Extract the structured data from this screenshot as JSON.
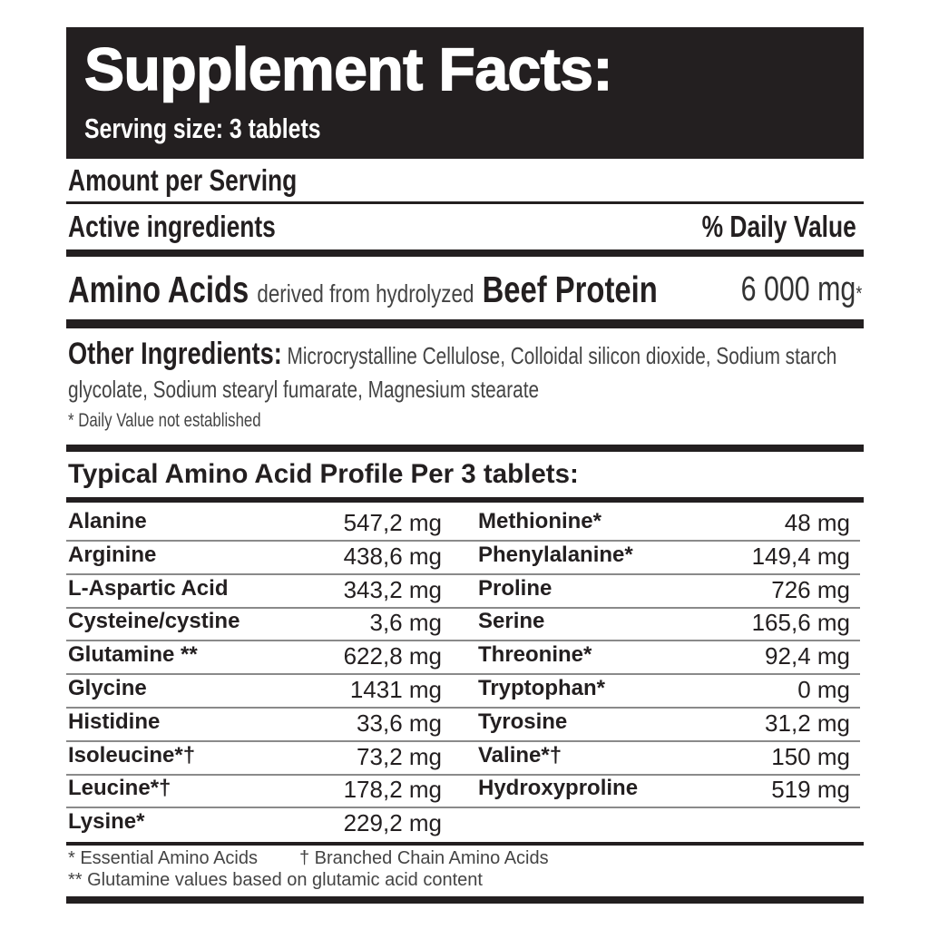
{
  "header": {
    "title": "Supplement Facts:",
    "serving_size": "Serving size: 3 tablets"
  },
  "amount_per_serving": "Amount per Serving",
  "active_ingredients_label": "Active ingredients",
  "daily_value_label": "% Daily Value",
  "active": {
    "name_bold_1": "Amino Acids",
    "name_regular": "derived from hydrolyzed",
    "name_bold_2": "Beef Protein",
    "amount": "6 000 mg",
    "amount_mark": "*"
  },
  "other_ingredients": {
    "label": "Other Ingredients:",
    "text": "Microcrystalline Cellulose, Colloidal silicon dioxide, Sodium starch glycolate, Sodium stearyl fumarate, Magnesium stearate"
  },
  "dv_note": "* Daily Value not established",
  "profile_title": "Typical Amino Acid Profile Per 3 tablets:",
  "amino_left": [
    {
      "name": "Alanine",
      "value": "547,2 mg"
    },
    {
      "name": "Arginine",
      "value": "438,6 mg"
    },
    {
      "name": "L-Aspartic Acid",
      "value": "343,2 mg"
    },
    {
      "name": "Cysteine/cystine",
      "value": "3,6 mg"
    },
    {
      "name": "Glutamine **",
      "value": "622,8 mg"
    },
    {
      "name": "Glycine",
      "value": "1431 mg"
    },
    {
      "name": "Histidine",
      "value": "33,6 mg"
    },
    {
      "name": "Isoleucine*†",
      "value": "73,2 mg"
    },
    {
      "name": "Leucine*†",
      "value": "178,2 mg"
    },
    {
      "name": "Lysine*",
      "value": "229,2 mg"
    }
  ],
  "amino_right": [
    {
      "name": "Methionine*",
      "value": "48 mg"
    },
    {
      "name": "Phenylalanine*",
      "value": "149,4 mg"
    },
    {
      "name": "Proline",
      "value": "726 mg"
    },
    {
      "name": "Serine",
      "value": "165,6 mg"
    },
    {
      "name": "Threonine*",
      "value": "92,4 mg"
    },
    {
      "name": "Tryptophan*",
      "value": "0 mg"
    },
    {
      "name": "Tyrosine",
      "value": "31,2 mg"
    },
    {
      "name": "Valine*†",
      "value": "150 mg"
    },
    {
      "name": "Hydroxyproline",
      "value": "519 mg"
    }
  ],
  "footnotes": {
    "essential": "* Essential Amino Acids",
    "bcaa": "† Branched Chain Amino Acids",
    "glutamine": "** Glutamine values based on glutamic acid content"
  }
}
